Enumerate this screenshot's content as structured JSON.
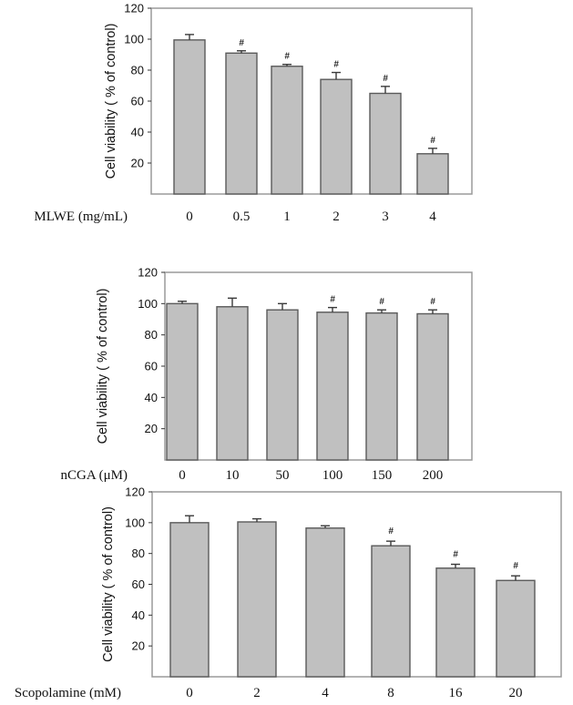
{
  "chart_data": [
    {
      "type": "bar",
      "ylabel": "Cell viability ( % of control)",
      "xlabel": "MLWE (mg/mL)",
      "categories": [
        "0",
        "0.5",
        "1",
        "2",
        "3",
        "4"
      ],
      "values": [
        99.5,
        91,
        82.5,
        74,
        65,
        26
      ],
      "errors": [
        3.5,
        1.5,
        1.2,
        4.5,
        4.5,
        3.5
      ],
      "annotations": [
        "",
        "#",
        "#",
        "#",
        "#",
        "#"
      ],
      "yticks": [
        20,
        40,
        60,
        80,
        100,
        120
      ],
      "ylim": [
        0,
        120
      ],
      "grid": false
    },
    {
      "type": "bar",
      "ylabel": "Cell viability ( % of control)",
      "xlabel": "nCGA (μM)",
      "categories": [
        "0",
        "10",
        "50",
        "100",
        "150",
        "200"
      ],
      "values": [
        100,
        98,
        96,
        94.5,
        94,
        93.5
      ],
      "errors": [
        1.5,
        5.5,
        4.0,
        3.0,
        2.0,
        2.5
      ],
      "annotations": [
        "",
        "",
        "",
        "#",
        "#",
        "#"
      ],
      "yticks": [
        20,
        40,
        60,
        80,
        100,
        120
      ],
      "ylim": [
        0,
        120
      ],
      "grid": false
    },
    {
      "type": "bar",
      "ylabel": "Cell viability ( % of control)",
      "xlabel": "Scopolamine  (mM)",
      "categories": [
        "0",
        "2",
        "4",
        "8",
        "16",
        "20"
      ],
      "values": [
        100,
        100.5,
        96.5,
        85,
        70.5,
        62.5
      ],
      "errors": [
        4.5,
        2.0,
        1.5,
        3.0,
        2.5,
        3.0
      ],
      "annotations": [
        "",
        "",
        "",
        "#",
        "#",
        "#"
      ],
      "yticks": [
        20,
        40,
        60,
        80,
        100,
        120
      ],
      "ylim": [
        0,
        120
      ],
      "grid": false
    }
  ]
}
